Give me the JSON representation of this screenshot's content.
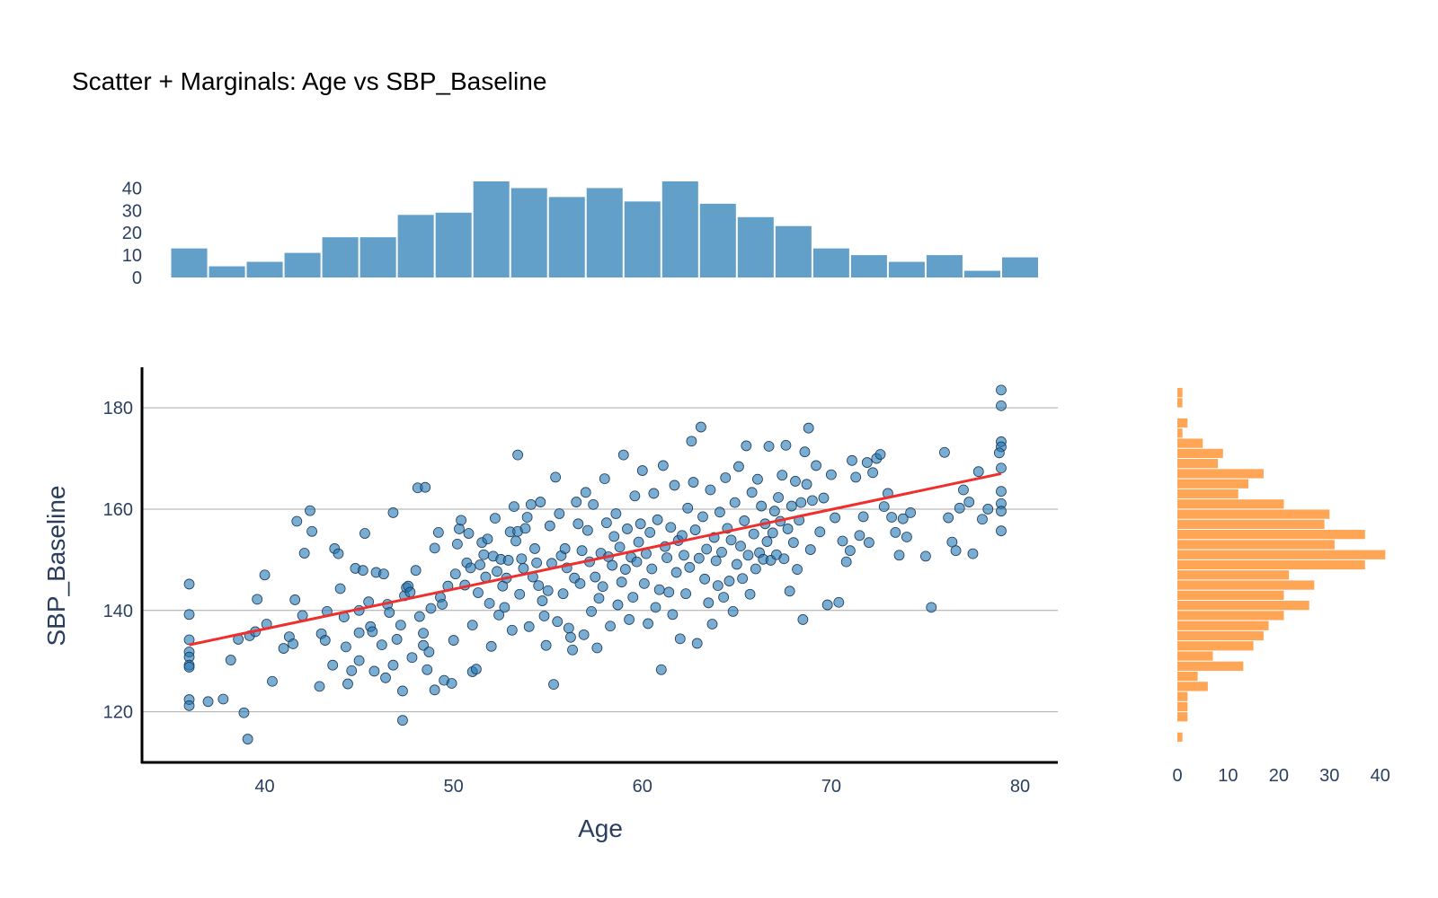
{
  "chart_data": {
    "type": "scatter",
    "title": "Scatter + Marginals: Age vs SBP_Baseline",
    "xlabel": "Age",
    "ylabel": "SBP_Baseline",
    "xlim": [
      33.5,
      82
    ],
    "ylim": [
      110,
      188
    ],
    "x_ticks": [
      "40",
      "50",
      "60",
      "70",
      "80"
    ],
    "y_ticks": [
      "120",
      "140",
      "160",
      "180"
    ],
    "grid": "horizontal",
    "colors": {
      "points": "#1f77b4",
      "point_edge": "#1f3b5a",
      "trend": "#ef2e2e",
      "top_hist": "#1f77b4",
      "right_hist": "#ff7f0e",
      "grid": "#a9a9a9",
      "axis": "#000000"
    },
    "trend_line": {
      "x": [
        36,
        79
      ],
      "y": [
        133.2,
        167.0
      ]
    },
    "scatter_points": [
      [
        36,
        145.2
      ],
      [
        36,
        139.2
      ],
      [
        36,
        134.2
      ],
      [
        36,
        131.8
      ],
      [
        36,
        130.8
      ],
      [
        36,
        129.2
      ],
      [
        36,
        128.8
      ],
      [
        36,
        122.4
      ],
      [
        36,
        121.2
      ],
      [
        37,
        122
      ],
      [
        37.8,
        122.5
      ],
      [
        38.2,
        130.2
      ],
      [
        38.6,
        134.3
      ],
      [
        38.9,
        119.8
      ],
      [
        39.1,
        114.6
      ],
      [
        39.2,
        135
      ],
      [
        39.5,
        135.8
      ],
      [
        39.6,
        142.2
      ],
      [
        40,
        147
      ],
      [
        40.1,
        137.3
      ],
      [
        40.4,
        126
      ],
      [
        41,
        132.5
      ],
      [
        41.3,
        134.8
      ],
      [
        41.5,
        133.4
      ],
      [
        41.6,
        142.1
      ],
      [
        41.7,
        157.6
      ],
      [
        42,
        139
      ],
      [
        42.1,
        151.3
      ],
      [
        42.4,
        159.7
      ],
      [
        42.5,
        155.6
      ],
      [
        42.9,
        125
      ],
      [
        43,
        135.4
      ],
      [
        43.2,
        134.1
      ],
      [
        43.3,
        139.8
      ],
      [
        43.6,
        129.2
      ],
      [
        43.7,
        152.2
      ],
      [
        43.9,
        151.2
      ],
      [
        44,
        144.3
      ],
      [
        44.2,
        138.7
      ],
      [
        44.3,
        132.8
      ],
      [
        44.4,
        125.5
      ],
      [
        44.6,
        128.1
      ],
      [
        44.8,
        148.3
      ],
      [
        45,
        130.1
      ],
      [
        45,
        135.6
      ],
      [
        45,
        140
      ],
      [
        45.2,
        147.9
      ],
      [
        45.3,
        155.2
      ],
      [
        45.5,
        141.7
      ],
      [
        45.6,
        136.8
      ],
      [
        45.7,
        135.8
      ],
      [
        45.8,
        128
      ],
      [
        45.9,
        147.5
      ],
      [
        46.2,
        133.2
      ],
      [
        46.3,
        147.2
      ],
      [
        46.4,
        126.7
      ],
      [
        46.5,
        141.2
      ],
      [
        46.6,
        139.6
      ],
      [
        46.8,
        159.3
      ],
      [
        46.8,
        129.2
      ],
      [
        47,
        134.3
      ],
      [
        47.2,
        137.1
      ],
      [
        47.3,
        124.1
      ],
      [
        47.3,
        118.3
      ],
      [
        47.4,
        142.9
      ],
      [
        47.5,
        144.5
      ],
      [
        47.6,
        144.8
      ],
      [
        47.7,
        143.6
      ],
      [
        47.8,
        130.7
      ],
      [
        48,
        147.9
      ],
      [
        48.1,
        164.2
      ],
      [
        48.2,
        138.8
      ],
      [
        48.4,
        133.1
      ],
      [
        48.4,
        135.5
      ],
      [
        48.5,
        164.3
      ],
      [
        48.6,
        128.3
      ],
      [
        48.7,
        131.8
      ],
      [
        48.8,
        140.4
      ],
      [
        49,
        124.3
      ],
      [
        49,
        152.3
      ],
      [
        49.2,
        155.4
      ],
      [
        49.3,
        142.6
      ],
      [
        49.4,
        141.2
      ],
      [
        49.5,
        126.2
      ],
      [
        49.7,
        144.8
      ],
      [
        49.9,
        125.6
      ],
      [
        50,
        134.1
      ],
      [
        50.1,
        147.2
      ],
      [
        50.2,
        153.1
      ],
      [
        50.3,
        156.1
      ],
      [
        50.4,
        157.8
      ],
      [
        50.6,
        145
      ],
      [
        50.7,
        149.4
      ],
      [
        50.8,
        155.2
      ],
      [
        50.9,
        148.4
      ],
      [
        51,
        127.9
      ],
      [
        51,
        137.1
      ],
      [
        51.2,
        128.4
      ],
      [
        51.3,
        143.5
      ],
      [
        51.4,
        149
      ],
      [
        51.5,
        153.4
      ],
      [
        51.6,
        151
      ],
      [
        51.7,
        146.6
      ],
      [
        51.8,
        154.1
      ],
      [
        51.9,
        141.4
      ],
      [
        52,
        132.9
      ],
      [
        52.1,
        150.7
      ],
      [
        52.2,
        158.2
      ],
      [
        52.3,
        147.7
      ],
      [
        52.4,
        139.1
      ],
      [
        52.5,
        150.1
      ],
      [
        52.6,
        144.8
      ],
      [
        52.7,
        140.6
      ],
      [
        52.8,
        146.4
      ],
      [
        52.9,
        149.9
      ],
      [
        53,
        155.5
      ],
      [
        53.1,
        136.1
      ],
      [
        53.2,
        160.5
      ],
      [
        53.3,
        153.7
      ],
      [
        53.4,
        155.6
      ],
      [
        53.4,
        170.7
      ],
      [
        53.5,
        143.2
      ],
      [
        53.6,
        150.2
      ],
      [
        53.7,
        148.3
      ],
      [
        53.8,
        156.2
      ],
      [
        53.9,
        158.4
      ],
      [
        54,
        136.8
      ],
      [
        54.1,
        160.9
      ],
      [
        54.2,
        146.6
      ],
      [
        54.3,
        152.2
      ],
      [
        54.4,
        149.4
      ],
      [
        54.5,
        144.9
      ],
      [
        54.6,
        161.4
      ],
      [
        54.7,
        141.9
      ],
      [
        54.8,
        138.9
      ],
      [
        54.9,
        133.1
      ],
      [
        55,
        143.9
      ],
      [
        55.1,
        156.7
      ],
      [
        55.2,
        149.3
      ],
      [
        55.3,
        125.4
      ],
      [
        55.4,
        166.3
      ],
      [
        55.5,
        137.8
      ],
      [
        55.6,
        159.1
      ],
      [
        55.7,
        150.8
      ],
      [
        55.8,
        143.3
      ],
      [
        55.9,
        152.2
      ],
      [
        56,
        148.4
      ],
      [
        56.1,
        136.5
      ],
      [
        56.2,
        134.7
      ],
      [
        56.3,
        132.2
      ],
      [
        56.4,
        146.4
      ],
      [
        56.5,
        161.4
      ],
      [
        56.6,
        157.1
      ],
      [
        56.7,
        145.3
      ],
      [
        56.8,
        151.8
      ],
      [
        56.9,
        135.2
      ],
      [
        57,
        163.3
      ],
      [
        57.1,
        155.8
      ],
      [
        57.2,
        149.6
      ],
      [
        57.3,
        139.8
      ],
      [
        57.4,
        160.9
      ],
      [
        57.5,
        146.6
      ],
      [
        57.6,
        132.6
      ],
      [
        57.7,
        142.4
      ],
      [
        57.8,
        151.3
      ],
      [
        57.9,
        144.7
      ],
      [
        58,
        166
      ],
      [
        58.1,
        157.3
      ],
      [
        58.2,
        150.6
      ],
      [
        58.3,
        136.9
      ],
      [
        58.4,
        148.9
      ],
      [
        58.5,
        154.6
      ],
      [
        58.6,
        159.1
      ],
      [
        58.7,
        141.1
      ],
      [
        58.8,
        152.5
      ],
      [
        58.9,
        145.6
      ],
      [
        59,
        170.7
      ],
      [
        59.1,
        148.1
      ],
      [
        59.2,
        156.1
      ],
      [
        59.3,
        138.2
      ],
      [
        59.4,
        150.5
      ],
      [
        59.5,
        142.6
      ],
      [
        59.6,
        162.6
      ],
      [
        59.7,
        149.6
      ],
      [
        59.8,
        153.5
      ],
      [
        59.9,
        157.1
      ],
      [
        60,
        167.6
      ],
      [
        60.1,
        145.3
      ],
      [
        60.2,
        151.2
      ],
      [
        60.3,
        137.4
      ],
      [
        60.4,
        155.4
      ],
      [
        60.5,
        148.2
      ],
      [
        60.6,
        163.1
      ],
      [
        60.7,
        140.6
      ],
      [
        60.8,
        157.9
      ],
      [
        60.9,
        144.1
      ],
      [
        61,
        128.3
      ],
      [
        61.1,
        168.6
      ],
      [
        61.2,
        152.6
      ],
      [
        61.3,
        150.4
      ],
      [
        61.4,
        143.6
      ],
      [
        61.5,
        156.4
      ],
      [
        61.6,
        139.2
      ],
      [
        61.7,
        164.7
      ],
      [
        61.8,
        147.5
      ],
      [
        61.9,
        153.8
      ],
      [
        62,
        134.4
      ],
      [
        62.1,
        154.8
      ],
      [
        62.2,
        150.9
      ],
      [
        62.3,
        143.3
      ],
      [
        62.4,
        160.2
      ],
      [
        62.5,
        148.5
      ],
      [
        62.6,
        173.4
      ],
      [
        62.7,
        165.3
      ],
      [
        62.8,
        155.9
      ],
      [
        62.9,
        133.5
      ],
      [
        63,
        150.3
      ],
      [
        63.1,
        176.2
      ],
      [
        63.2,
        158.5
      ],
      [
        63.3,
        146.2
      ],
      [
        63.4,
        152.1
      ],
      [
        63.5,
        141.5
      ],
      [
        63.6,
        163.8
      ],
      [
        63.7,
        137.3
      ],
      [
        63.8,
        154.4
      ],
      [
        63.9,
        149.8
      ],
      [
        64,
        144.9
      ],
      [
        64.1,
        159.4
      ],
      [
        64.2,
        151.5
      ],
      [
        64.3,
        142.6
      ],
      [
        64.4,
        166.2
      ],
      [
        64.5,
        156.2
      ],
      [
        64.6,
        145.8
      ],
      [
        64.7,
        153.9
      ],
      [
        64.8,
        139.8
      ],
      [
        64.9,
        161.3
      ],
      [
        65,
        149.1
      ],
      [
        65.1,
        168.4
      ],
      [
        65.2,
        152.7
      ],
      [
        65.3,
        146.3
      ],
      [
        65.4,
        157.7
      ],
      [
        65.5,
        172.5
      ],
      [
        65.6,
        150.9
      ],
      [
        65.7,
        143.2
      ],
      [
        65.8,
        163.3
      ],
      [
        65.9,
        155.1
      ],
      [
        66,
        148.2
      ],
      [
        66.1,
        165.9
      ],
      [
        66.2,
        151.4
      ],
      [
        66.3,
        160.6
      ],
      [
        66.4,
        150.1
      ],
      [
        66.5,
        157.1
      ],
      [
        66.6,
        153.6
      ],
      [
        66.7,
        172.4
      ],
      [
        66.8,
        149.9
      ],
      [
        66.9,
        155.3
      ],
      [
        67,
        159.6
      ],
      [
        67.1,
        151
      ],
      [
        67.2,
        162.3
      ],
      [
        67.3,
        157.6
      ],
      [
        67.4,
        166.7
      ],
      [
        67.5,
        150.2
      ],
      [
        67.6,
        172.6
      ],
      [
        67.7,
        156.1
      ],
      [
        67.8,
        143.8
      ],
      [
        67.9,
        160.6
      ],
      [
        68,
        153.4
      ],
      [
        68.1,
        165.5
      ],
      [
        68.2,
        148.1
      ],
      [
        68.3,
        157.8
      ],
      [
        68.4,
        161.3
      ],
      [
        68.5,
        138.2
      ],
      [
        68.6,
        171.3
      ],
      [
        68.7,
        164.9
      ],
      [
        68.8,
        176
      ],
      [
        68.9,
        152
      ],
      [
        69,
        161.7
      ],
      [
        69.2,
        168.6
      ],
      [
        69.4,
        155.5
      ],
      [
        69.6,
        162.2
      ],
      [
        69.8,
        141.1
      ],
      [
        70,
        166.8
      ],
      [
        70.2,
        158.3
      ],
      [
        70.4,
        141.6
      ],
      [
        70.6,
        153.7
      ],
      [
        70.8,
        149.6
      ],
      [
        71,
        151.8
      ],
      [
        71.1,
        169.6
      ],
      [
        71.3,
        166.3
      ],
      [
        71.5,
        154.8
      ],
      [
        71.7,
        158.5
      ],
      [
        71.9,
        169.2
      ],
      [
        72,
        153.4
      ],
      [
        72.2,
        167.2
      ],
      [
        72.4,
        170
      ],
      [
        72.6,
        170.8
      ],
      [
        72.8,
        160.5
      ],
      [
        73,
        163.1
      ],
      [
        73.2,
        158.4
      ],
      [
        73.4,
        155.4
      ],
      [
        73.6,
        150.9
      ],
      [
        73.8,
        158.1
      ],
      [
        74,
        154.5
      ],
      [
        74.2,
        159.3
      ],
      [
        75,
        150.7
      ],
      [
        75.3,
        140.6
      ],
      [
        76,
        171.2
      ],
      [
        76.2,
        158.3
      ],
      [
        76.4,
        153.5
      ],
      [
        76.6,
        151.8
      ],
      [
        76.8,
        160.2
      ],
      [
        77,
        163.8
      ],
      [
        77.3,
        161.4
      ],
      [
        77.5,
        151.2
      ],
      [
        77.8,
        167.4
      ],
      [
        78,
        158
      ],
      [
        78.3,
        160
      ],
      [
        79,
        183.5
      ],
      [
        79,
        180.4
      ],
      [
        79,
        173.3
      ],
      [
        79,
        172.3
      ],
      [
        79,
        168.1
      ],
      [
        79,
        163.5
      ],
      [
        79,
        161.1
      ],
      [
        79,
        159.6
      ],
      [
        79,
        155.7
      ],
      [
        78.9,
        171.1
      ]
    ],
    "top_histogram": {
      "bins": [
        [
          35,
          37
        ],
        [
          37,
          39
        ],
        [
          39,
          41
        ],
        [
          41,
          43
        ],
        [
          43,
          45
        ],
        [
          45,
          47
        ],
        [
          47,
          49
        ],
        [
          49,
          51
        ],
        [
          51,
          53
        ],
        [
          53,
          55
        ],
        [
          55,
          57
        ],
        [
          57,
          59
        ],
        [
          59,
          61
        ],
        [
          61,
          63
        ],
        [
          63,
          65
        ],
        [
          65,
          67
        ],
        [
          67,
          69
        ],
        [
          69,
          71
        ],
        [
          71,
          73
        ],
        [
          73,
          75
        ],
        [
          75,
          77
        ],
        [
          77,
          79
        ],
        [
          79,
          81
        ]
      ],
      "counts": [
        13,
        5,
        7,
        11,
        18,
        18,
        28,
        29,
        43,
        40,
        36,
        40,
        34,
        43,
        33,
        27,
        23,
        13,
        10,
        7,
        10,
        3,
        9
      ],
      "y_ticks": [
        "0",
        "10",
        "20",
        "30",
        "40"
      ],
      "ylim": [
        0,
        45
      ]
    },
    "right_histogram": {
      "bins": [
        [
          114,
          116
        ],
        [
          116,
          118
        ],
        [
          118,
          120
        ],
        [
          120,
          122
        ],
        [
          122,
          124
        ],
        [
          124,
          126
        ],
        [
          126,
          128
        ],
        [
          128,
          130
        ],
        [
          130,
          132
        ],
        [
          132,
          134
        ],
        [
          134,
          136
        ],
        [
          136,
          138
        ],
        [
          138,
          140
        ],
        [
          140,
          142
        ],
        [
          142,
          144
        ],
        [
          144,
          146
        ],
        [
          146,
          148
        ],
        [
          148,
          150
        ],
        [
          150,
          152
        ],
        [
          152,
          154
        ],
        [
          154,
          156
        ],
        [
          156,
          158
        ],
        [
          158,
          160
        ],
        [
          160,
          162
        ],
        [
          162,
          164
        ],
        [
          164,
          166
        ],
        [
          166,
          168
        ],
        [
          168,
          170
        ],
        [
          170,
          172
        ],
        [
          172,
          174
        ],
        [
          174,
          176
        ],
        [
          176,
          178
        ],
        [
          178,
          180
        ],
        [
          180,
          182
        ],
        [
          182,
          184
        ]
      ],
      "counts": [
        1,
        0,
        2,
        2,
        2,
        6,
        4,
        13,
        7,
        15,
        17,
        18,
        21,
        26,
        21,
        27,
        22,
        37,
        41,
        31,
        37,
        29,
        30,
        21,
        12,
        14,
        17,
        8,
        9,
        5,
        1,
        2,
        0,
        1,
        1
      ],
      "x_ticks": [
        "0",
        "10",
        "20",
        "30",
        "40"
      ],
      "xlim": [
        0,
        42
      ]
    }
  }
}
